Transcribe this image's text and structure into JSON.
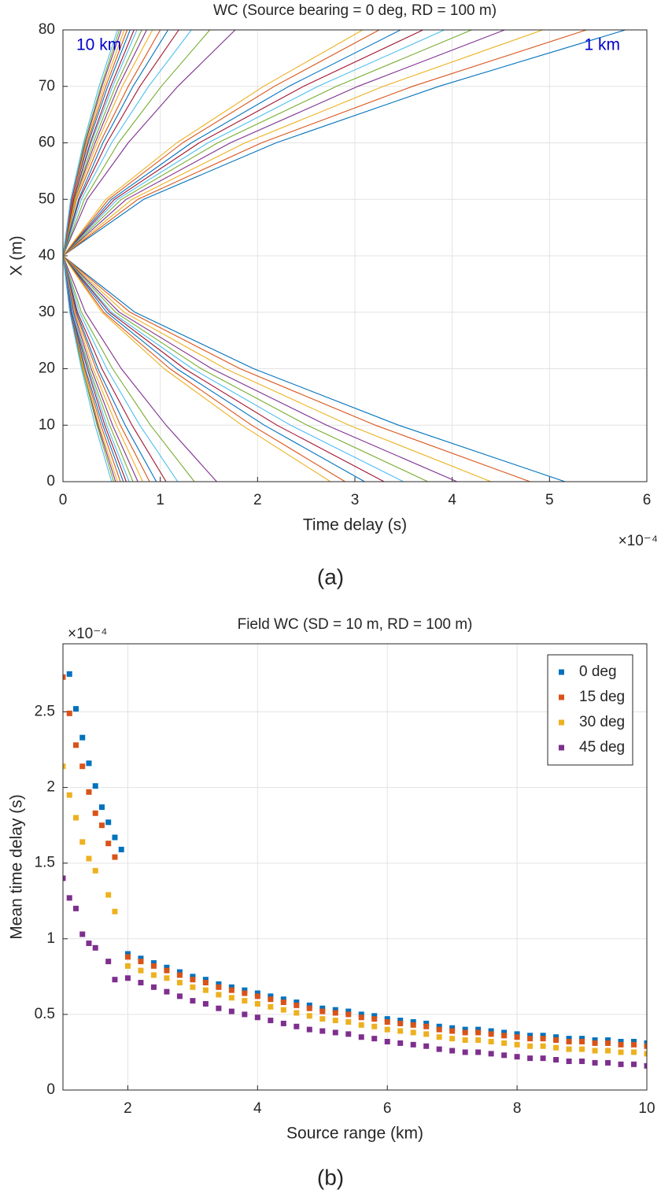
{
  "chart_data": [
    {
      "type": "line",
      "title": "WC (Source bearing = 0 deg, RD = 100 m)",
      "xlabel": "Time delay (s)",
      "ylabel": "X (m)",
      "exponent_label": "×10⁻⁴",
      "caption": "(a)",
      "annotations": [
        {
          "text": "10 km",
          "color": "#0000cc"
        },
        {
          "text": "1 km",
          "color": "#0000cc"
        }
      ],
      "xlim": [
        0,
        6
      ],
      "xticks": [
        0,
        1,
        2,
        3,
        4,
        5,
        6
      ],
      "ylim": [
        0,
        80
      ],
      "yticks": [
        0,
        10,
        20,
        30,
        40,
        50,
        60,
        70,
        80
      ],
      "grid": true,
      "y": [
        0,
        10,
        20,
        30,
        40,
        50,
        60,
        70,
        80
      ],
      "series": [
        {
          "color": "#0072bd",
          "values": [
            5.16,
            3.45,
            1.96,
            0.74,
            0,
            0.83,
            2.19,
            3.86,
            5.78
          ]
        },
        {
          "color": "#d95319",
          "values": [
            4.8,
            3.21,
            1.82,
            0.69,
            0,
            0.77,
            2.04,
            3.59,
            5.38
          ]
        },
        {
          "color": "#edb120",
          "values": [
            4.4,
            2.94,
            1.67,
            0.63,
            0,
            0.71,
            1.87,
            3.29,
            4.93
          ]
        },
        {
          "color": "#7e2f8e",
          "values": [
            4.05,
            2.71,
            1.53,
            0.58,
            0,
            0.65,
            1.72,
            3.03,
            4.54
          ]
        },
        {
          "color": "#77ac30",
          "values": [
            3.75,
            2.51,
            1.42,
            0.54,
            0,
            0.6,
            1.59,
            2.81,
            4.2
          ]
        },
        {
          "color": "#4dbeee",
          "values": [
            3.5,
            2.34,
            1.33,
            0.5,
            0,
            0.56,
            1.49,
            2.62,
            3.92
          ]
        },
        {
          "color": "#a2142f",
          "values": [
            3.3,
            2.2,
            1.25,
            0.48,
            0,
            0.53,
            1.4,
            2.47,
            3.7
          ]
        },
        {
          "color": "#0072bd",
          "values": [
            3.1,
            2.07,
            1.17,
            0.45,
            0,
            0.5,
            1.32,
            2.32,
            3.47
          ]
        },
        {
          "color": "#d95319",
          "values": [
            2.9,
            1.94,
            1.1,
            0.42,
            0,
            0.47,
            1.23,
            2.17,
            3.25
          ]
        },
        {
          "color": "#edb120",
          "values": [
            2.75,
            1.84,
            1.04,
            0.4,
            0,
            0.44,
            1.17,
            2.06,
            3.08
          ]
        },
        {
          "color": "#7e2f8e",
          "values": [
            1.58,
            1.06,
            0.6,
            0.23,
            0,
            0.25,
            0.67,
            1.18,
            1.77
          ]
        },
        {
          "color": "#77ac30",
          "values": [
            1.35,
            0.9,
            0.51,
            0.19,
            0,
            0.22,
            0.57,
            1.01,
            1.51
          ]
        },
        {
          "color": "#4dbeee",
          "values": [
            1.18,
            0.79,
            0.45,
            0.17,
            0,
            0.19,
            0.5,
            0.88,
            1.32
          ]
        },
        {
          "color": "#a2142f",
          "values": [
            1.06,
            0.71,
            0.4,
            0.15,
            0,
            0.17,
            0.45,
            0.79,
            1.19
          ]
        },
        {
          "color": "#0072bd",
          "values": [
            0.96,
            0.64,
            0.36,
            0.14,
            0,
            0.16,
            0.41,
            0.72,
            1.08
          ]
        },
        {
          "color": "#d95319",
          "values": [
            0.89,
            0.59,
            0.34,
            0.13,
            0,
            0.14,
            0.38,
            0.67,
            1.0
          ]
        },
        {
          "color": "#edb120",
          "values": [
            0.82,
            0.55,
            0.31,
            0.12,
            0,
            0.13,
            0.35,
            0.61,
            0.92
          ]
        },
        {
          "color": "#7e2f8e",
          "values": [
            0.77,
            0.51,
            0.29,
            0.11,
            0,
            0.12,
            0.33,
            0.57,
            0.86
          ]
        },
        {
          "color": "#77ac30",
          "values": [
            0.72,
            0.48,
            0.27,
            0.1,
            0,
            0.12,
            0.31,
            0.54,
            0.81
          ]
        },
        {
          "color": "#4dbeee",
          "values": [
            0.68,
            0.45,
            0.26,
            0.1,
            0,
            0.11,
            0.29,
            0.51,
            0.76
          ]
        },
        {
          "color": "#a2142f",
          "values": [
            0.65,
            0.43,
            0.25,
            0.09,
            0,
            0.11,
            0.28,
            0.49,
            0.73
          ]
        },
        {
          "color": "#0072bd",
          "values": [
            0.62,
            0.41,
            0.23,
            0.09,
            0,
            0.1,
            0.26,
            0.46,
            0.69
          ]
        },
        {
          "color": "#d95319",
          "values": [
            0.59,
            0.39,
            0.22,
            0.08,
            0,
            0.1,
            0.25,
            0.44,
            0.66
          ]
        },
        {
          "color": "#edb120",
          "values": [
            0.56,
            0.37,
            0.21,
            0.08,
            0,
            0.09,
            0.24,
            0.42,
            0.63
          ]
        },
        {
          "color": "#7e2f8e",
          "values": [
            0.54,
            0.36,
            0.2,
            0.08,
            0,
            0.09,
            0.23,
            0.4,
            0.6
          ]
        },
        {
          "color": "#77ac30",
          "values": [
            0.52,
            0.35,
            0.2,
            0.07,
            0,
            0.08,
            0.22,
            0.39,
            0.58
          ]
        },
        {
          "color": "#4dbeee",
          "values": [
            0.5,
            0.33,
            0.19,
            0.07,
            0,
            0.08,
            0.21,
            0.37,
            0.56
          ]
        }
      ]
    },
    {
      "type": "scatter",
      "title": "Field WC (SD = 10 m, RD = 100 m)",
      "xlabel": "Source range (km)",
      "ylabel": "Mean time delay (s)",
      "exponent_label": "×10⁻⁴",
      "caption": "(b)",
      "xlim": [
        1,
        10
      ],
      "xticks": [
        2,
        4,
        6,
        8,
        10
      ],
      "ylim": [
        0,
        2.95
      ],
      "yticks": [
        0,
        0.5,
        1,
        1.5,
        2,
        2.5
      ],
      "grid": true,
      "legend": "northeast",
      "x": [
        1.0,
        1.1,
        1.2,
        1.3,
        1.4,
        1.5,
        1.6,
        1.7,
        1.8,
        1.9,
        2.0,
        2.2,
        2.4,
        2.6,
        2.8,
        3.0,
        3.2,
        3.4,
        3.6,
        3.8,
        4.0,
        4.2,
        4.4,
        4.6,
        4.8,
        5.0,
        5.2,
        5.4,
        5.6,
        5.8,
        6.0,
        6.2,
        6.4,
        6.6,
        6.8,
        7.0,
        7.2,
        7.4,
        7.6,
        7.8,
        8.0,
        8.2,
        8.4,
        8.6,
        8.8,
        9.0,
        9.2,
        9.4,
        9.6,
        9.8,
        10.0
      ],
      "series": [
        {
          "name": "0 deg",
          "color": "#0072bd",
          "values": [
            null,
            2.75,
            2.52,
            2.33,
            2.16,
            2.01,
            1.87,
            1.77,
            1.67,
            1.59,
            0.9,
            0.87,
            0.84,
            0.81,
            0.78,
            0.75,
            0.73,
            0.7,
            0.68,
            0.66,
            0.64,
            0.62,
            0.6,
            0.58,
            0.56,
            0.54,
            0.53,
            0.52,
            0.5,
            0.49,
            0.47,
            0.46,
            0.45,
            0.44,
            0.42,
            0.41,
            0.4,
            0.4,
            0.39,
            0.38,
            0.37,
            0.36,
            0.36,
            0.35,
            0.34,
            0.34,
            0.33,
            0.33,
            0.32,
            0.32,
            0.31
          ]
        },
        {
          "name": "15 deg",
          "color": "#d95319",
          "values": [
            2.73,
            2.49,
            2.28,
            2.14,
            1.97,
            1.83,
            1.75,
            1.63,
            1.54,
            null,
            0.88,
            0.85,
            0.82,
            0.79,
            0.76,
            0.73,
            0.71,
            0.68,
            0.66,
            0.64,
            0.62,
            0.6,
            0.58,
            0.56,
            0.54,
            0.52,
            0.51,
            0.5,
            0.48,
            0.47,
            0.45,
            0.44,
            0.43,
            0.42,
            0.4,
            0.39,
            0.38,
            0.38,
            0.37,
            0.36,
            0.35,
            0.34,
            0.34,
            0.33,
            0.32,
            0.32,
            0.31,
            0.31,
            0.3,
            0.3,
            0.29
          ]
        },
        {
          "name": "30 deg",
          "color": "#edb120",
          "values": [
            2.14,
            1.95,
            1.8,
            1.64,
            1.53,
            1.45,
            null,
            1.29,
            1.18,
            null,
            0.82,
            0.79,
            0.76,
            0.74,
            0.71,
            0.68,
            0.66,
            0.63,
            0.61,
            0.59,
            0.57,
            0.55,
            0.53,
            0.51,
            0.49,
            0.47,
            0.46,
            0.45,
            0.43,
            0.42,
            0.4,
            0.39,
            0.38,
            0.37,
            0.35,
            0.34,
            0.33,
            0.33,
            0.32,
            0.31,
            0.3,
            0.29,
            0.29,
            0.28,
            0.27,
            0.27,
            0.26,
            0.26,
            0.25,
            0.25,
            0.24
          ]
        },
        {
          "name": "45 deg",
          "color": "#7e2f8e",
          "values": [
            1.4,
            1.27,
            1.2,
            1.03,
            0.97,
            0.94,
            null,
            0.85,
            0.73,
            null,
            0.74,
            0.71,
            0.68,
            0.65,
            0.62,
            0.59,
            0.57,
            0.54,
            0.52,
            0.5,
            0.48,
            0.46,
            0.44,
            0.42,
            0.4,
            0.39,
            0.38,
            0.37,
            0.35,
            0.34,
            0.32,
            0.31,
            0.3,
            0.29,
            0.27,
            0.26,
            0.25,
            0.25,
            0.24,
            0.23,
            0.22,
            0.21,
            0.21,
            0.2,
            0.19,
            0.19,
            0.18,
            0.18,
            0.17,
            0.17,
            0.16
          ]
        }
      ]
    }
  ]
}
